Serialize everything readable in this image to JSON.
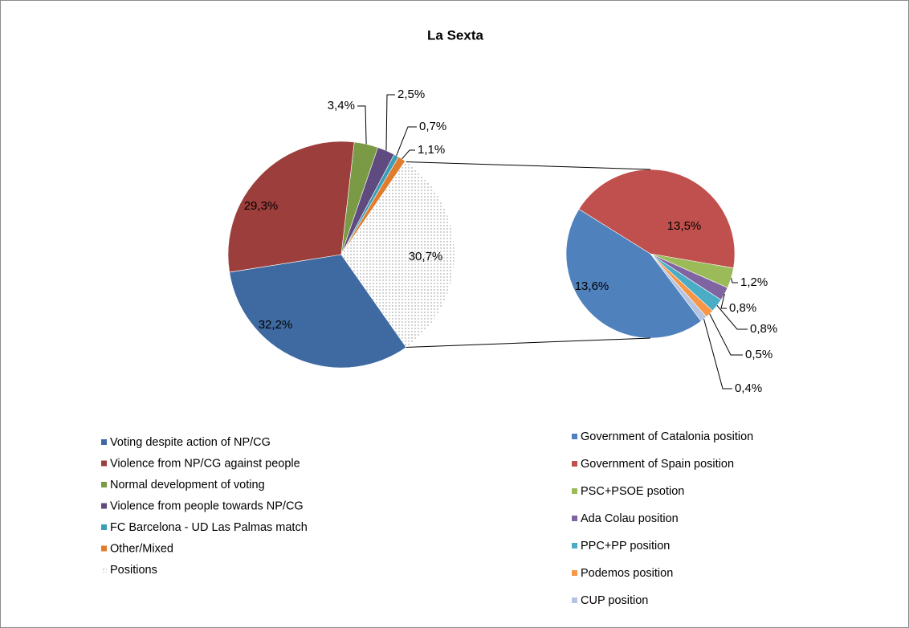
{
  "chart_data": [
    {
      "type": "pie",
      "title": "La Sexta",
      "categories": [
        "Voting despite action of NP/CG",
        "Violence from NP/CG against people",
        "Normal development of voting",
        "Violence from people towards NP/CG",
        "FC Barcelona - UD Las Palmas match",
        "Other/Mixed",
        "Positions"
      ],
      "values": [
        32.2,
        29.3,
        3.4,
        2.5,
        0.7,
        1.1,
        30.7
      ],
      "value_labels": [
        "32,2%",
        "29,3%",
        "3,4%",
        "2,5%",
        "0,7%",
        "1,1%",
        "30,7%"
      ],
      "colors": [
        "#3e6aa1",
        "#9c3e3b",
        "#7b9a45",
        "#604b80",
        "#3a9fb6",
        "#e07c2c",
        "#8c8c8c"
      ],
      "dotted": "Positions"
    },
    {
      "type": "pie",
      "categories": [
        "Government of Catalonia position",
        "Government of Spain position",
        "PSC+PSOE psotion",
        "Ada Colau position",
        "PPC+PP position",
        "Podemos position",
        "CUP position"
      ],
      "values": [
        13.6,
        13.5,
        1.2,
        0.8,
        0.8,
        0.5,
        0.4
      ],
      "value_labels": [
        "13,6%",
        "13,5%",
        "1,2%",
        "0,8%",
        "0,8%",
        "0,5%",
        "0,4%"
      ],
      "colors": [
        "#4f81bd",
        "#c0504d",
        "#9bbb59",
        "#8064a2",
        "#4bacc6",
        "#f79646",
        "#b4c4e1"
      ]
    }
  ]
}
